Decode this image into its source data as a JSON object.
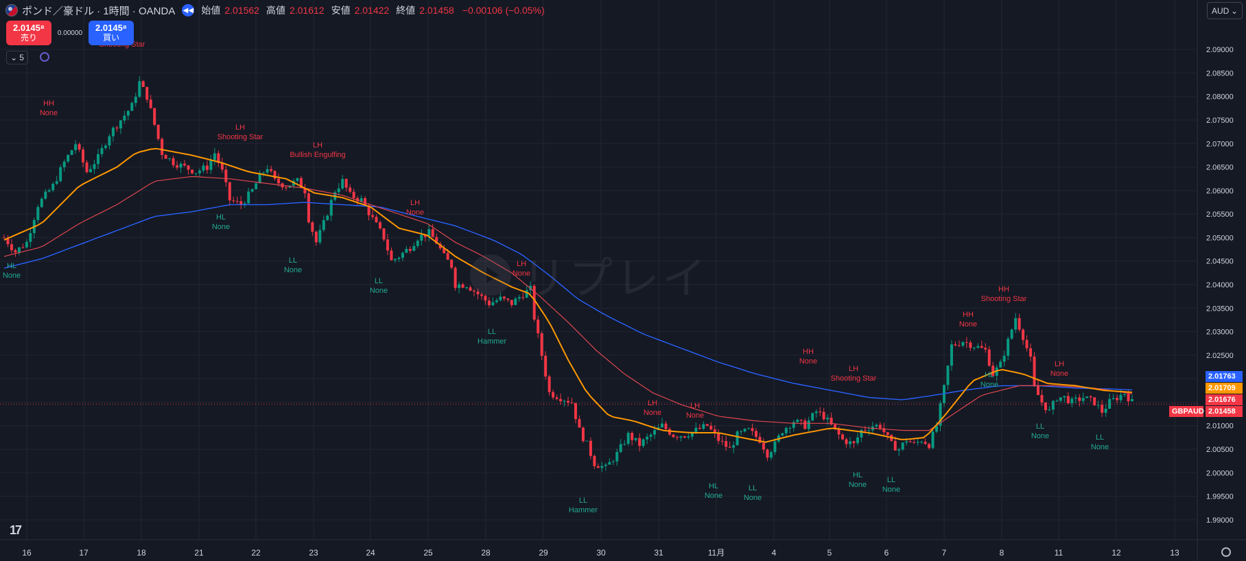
{
  "header": {
    "symbol_title": "ポンド／豪ドル · 1時間 · OANDA",
    "open_label": "始値",
    "open": "2.01562",
    "high_label": "高値",
    "high": "2.01612",
    "low_label": "安値",
    "low": "2.01422",
    "close_label": "終値",
    "close": "2.01458",
    "change": "−0.00106 (−0.05%)"
  },
  "trade": {
    "sell_price": "2.0145⁸",
    "sell_label": "売り",
    "spread": "0.00000",
    "buy_price": "2.0145⁸",
    "buy_label": "買い"
  },
  "collapse_count": "5",
  "currency": "AUD",
  "watermark": "リプレイ",
  "price_axis": [
    "2.09000",
    "2.08500",
    "2.08000",
    "2.07500",
    "2.07000",
    "2.06500",
    "2.06000",
    "2.05500",
    "2.05000",
    "2.04500",
    "2.04000",
    "2.03500",
    "2.03000",
    "2.02500",
    "2.02000",
    "2.01500",
    "2.01000",
    "2.00500",
    "2.00000",
    "1.99500",
    "1.99000"
  ],
  "time_axis": [
    "16",
    "17",
    "18",
    "21",
    "22",
    "23",
    "24",
    "25",
    "28",
    "29",
    "30",
    "31",
    "11月",
    "4",
    "5",
    "6",
    "7",
    "8",
    "11",
    "12",
    "13"
  ],
  "price_tags": {
    "ema_slow": {
      "value": "2.01763",
      "color": "#2962ff"
    },
    "ema_fast": {
      "value": "2.01709",
      "color": "#ff9800"
    },
    "ema_mid": {
      "value": "2.01676",
      "color": "#f23645"
    },
    "last": {
      "value": "2.01458",
      "color": "#f23645"
    },
    "symbol": {
      "value": "GBPAUD",
      "color": "#f23645"
    }
  },
  "annotations": [
    {
      "t1": "HL",
      "t2": "None",
      "c": "teal"
    },
    {
      "t1": "HH",
      "t2": "None",
      "c": "red"
    },
    {
      "t1": "Shooting Star",
      "t2": "",
      "c": "red"
    },
    {
      "t1": "LH",
      "t2": "Shooting Star",
      "c": "red"
    },
    {
      "t1": "HL",
      "t2": "None",
      "c": "teal"
    },
    {
      "t1": "LH",
      "t2": "Bullish Engulfing",
      "c": "red"
    },
    {
      "t1": "LL",
      "t2": "None",
      "c": "teal"
    },
    {
      "t1": "LH",
      "t2": "None",
      "c": "red"
    },
    {
      "t1": "LL",
      "t2": "None",
      "c": "teal"
    },
    {
      "t1": "LH",
      "t2": "None",
      "c": "red"
    },
    {
      "t1": "LL",
      "t2": "Hammer",
      "c": "teal"
    },
    {
      "t1": "LL",
      "t2": "Hammer",
      "c": "teal"
    },
    {
      "t1": "LH",
      "t2": "None",
      "c": "red"
    },
    {
      "t1": "LH",
      "t2": "None",
      "c": "red"
    },
    {
      "t1": "HL",
      "t2": "None",
      "c": "teal"
    },
    {
      "t1": "LL",
      "t2": "None",
      "c": "teal"
    },
    {
      "t1": "HH",
      "t2": "None",
      "c": "red"
    },
    {
      "t1": "LH",
      "t2": "Shooting Star",
      "c": "red"
    },
    {
      "t1": "HL",
      "t2": "None",
      "c": "teal"
    },
    {
      "t1": "LL",
      "t2": "None",
      "c": "teal"
    },
    {
      "t1": "HH",
      "t2": "None",
      "c": "red"
    },
    {
      "t1": "HH",
      "t2": "Shooting Star",
      "c": "red"
    },
    {
      "t1": "HL",
      "t2": "None",
      "c": "teal"
    },
    {
      "t1": "LL",
      "t2": "None",
      "c": "teal"
    },
    {
      "t1": "LH",
      "t2": "None",
      "c": "red"
    },
    {
      "t1": "LL",
      "t2": "None",
      "c": "teal"
    }
  ],
  "colors": {
    "background": "#151924",
    "grid": "#232632",
    "up": "#089981",
    "down": "#f23645",
    "ema_fast": "#ff9800",
    "ema_mid": "#e0474f",
    "ema_slow": "#2962ff",
    "axis_text": "#d1d4dc",
    "label_red": "#f23645",
    "label_teal": "#22ab94"
  },
  "chart_data": {
    "type": "candlestick",
    "ylim": [
      1.9875,
      2.0925
    ],
    "y_ticks": [
      2.09,
      2.085,
      2.08,
      2.075,
      2.07,
      2.065,
      2.06,
      2.055,
      2.05,
      2.045,
      2.04,
      2.035,
      2.03,
      2.025,
      2.02,
      2.015,
      2.01,
      2.005,
      2.0,
      1.995,
      1.99
    ],
    "price_path": [
      [
        0,
        2.05
      ],
      [
        6,
        2.047
      ],
      [
        12,
        2.049
      ],
      [
        18,
        2.057
      ],
      [
        26,
        2.061
      ],
      [
        32,
        2.066
      ],
      [
        38,
        2.07
      ],
      [
        44,
        2.064
      ],
      [
        50,
        2.067
      ],
      [
        56,
        2.072
      ],
      [
        62,
        2.075
      ],
      [
        68,
        2.078
      ],
      [
        72,
        2.083
      ],
      [
        76,
        2.08
      ],
      [
        80,
        2.074
      ],
      [
        84,
        2.068
      ],
      [
        90,
        2.066
      ],
      [
        96,
        2.065
      ],
      [
        102,
        2.064
      ],
      [
        108,
        2.065
      ],
      [
        112,
        2.068
      ],
      [
        116,
        2.064
      ],
      [
        120,
        2.058
      ],
      [
        126,
        2.057
      ],
      [
        132,
        2.06
      ],
      [
        136,
        2.063
      ],
      [
        140,
        2.065
      ],
      [
        144,
        2.062
      ],
      [
        150,
        2.061
      ],
      [
        156,
        2.062
      ],
      [
        160,
        2.06
      ],
      [
        162,
        2.054
      ],
      [
        166,
        2.049
      ],
      [
        170,
        2.053
      ],
      [
        176,
        2.06
      ],
      [
        180,
        2.062
      ],
      [
        184,
        2.059
      ],
      [
        190,
        2.058
      ],
      [
        196,
        2.054
      ],
      [
        202,
        2.05
      ],
      [
        206,
        2.045
      ],
      [
        210,
        2.046
      ],
      [
        216,
        2.048
      ],
      [
        220,
        2.05
      ],
      [
        226,
        2.051
      ],
      [
        230,
        2.049
      ],
      [
        234,
        2.046
      ],
      [
        238,
        2.044
      ],
      [
        240,
        2.04
      ],
      [
        246,
        2.04
      ],
      [
        252,
        2.038
      ],
      [
        258,
        2.036
      ],
      [
        264,
        2.037
      ],
      [
        270,
        2.036
      ],
      [
        276,
        2.038
      ],
      [
        280,
        2.039
      ],
      [
        282,
        2.033
      ],
      [
        286,
        2.025
      ],
      [
        290,
        2.017
      ],
      [
        296,
        2.016
      ],
      [
        302,
        2.015
      ],
      [
        306,
        2.009
      ],
      [
        310,
        2.006
      ],
      [
        314,
        2.002
      ],
      [
        320,
        2.001
      ],
      [
        326,
        2.004
      ],
      [
        332,
        2.008
      ],
      [
        338,
        2.006
      ],
      [
        344,
        2.008
      ],
      [
        350,
        2.01
      ],
      [
        356,
        2.008
      ],
      [
        362,
        2.008
      ],
      [
        368,
        2.009
      ],
      [
        374,
        2.01
      ],
      [
        380,
        2.007
      ],
      [
        386,
        2.005
      ],
      [
        390,
        2.008
      ],
      [
        396,
        2.009
      ],
      [
        402,
        2.007
      ],
      [
        406,
        2.004
      ],
      [
        410,
        2.006
      ],
      [
        414,
        2.009
      ],
      [
        420,
        2.011
      ],
      [
        426,
        2.01
      ],
      [
        432,
        2.013
      ],
      [
        436,
        2.012
      ],
      [
        440,
        2.01
      ],
      [
        446,
        2.007
      ],
      [
        452,
        2.006
      ],
      [
        456,
        2.009
      ],
      [
        462,
        2.01
      ],
      [
        466,
        2.01
      ],
      [
        472,
        2.006
      ],
      [
        476,
        2.005
      ],
      [
        480,
        2.007
      ],
      [
        484,
        2.006
      ],
      [
        488,
        2.007
      ],
      [
        492,
        2.006
      ],
      [
        496,
        2.01
      ],
      [
        500,
        2.018
      ],
      [
        504,
        2.027
      ],
      [
        510,
        2.028
      ],
      [
        516,
        2.027
      ],
      [
        522,
        2.026
      ],
      [
        526,
        2.021
      ],
      [
        530,
        2.023
      ],
      [
        534,
        2.028
      ],
      [
        538,
        2.033
      ],
      [
        542,
        2.029
      ],
      [
        546,
        2.024
      ],
      [
        548,
        2.018
      ],
      [
        552,
        2.015
      ],
      [
        556,
        2.013
      ],
      [
        560,
        2.016
      ],
      [
        564,
        2.016
      ],
      [
        568,
        2.015
      ],
      [
        574,
        2.016
      ],
      [
        580,
        2.015
      ],
      [
        584,
        2.013
      ],
      [
        588,
        2.015
      ],
      [
        592,
        2.016
      ],
      [
        596,
        2.017
      ],
      [
        600,
        2.015
      ]
    ],
    "ema_fast": [
      [
        0,
        2.0495
      ],
      [
        20,
        2.053
      ],
      [
        40,
        2.061
      ],
      [
        60,
        2.065
      ],
      [
        70,
        2.068
      ],
      [
        80,
        2.069
      ],
      [
        100,
        2.0675
      ],
      [
        115,
        2.066
      ],
      [
        130,
        2.064
      ],
      [
        150,
        2.0625
      ],
      [
        165,
        2.0595
      ],
      [
        180,
        2.0585
      ],
      [
        195,
        2.0565
      ],
      [
        210,
        2.052
      ],
      [
        225,
        2.0505
      ],
      [
        240,
        2.046
      ],
      [
        255,
        2.0425
      ],
      [
        270,
        2.0395
      ],
      [
        280,
        2.038
      ],
      [
        290,
        2.032
      ],
      [
        300,
        2.024
      ],
      [
        310,
        2.017
      ],
      [
        322,
        2.012
      ],
      [
        335,
        2.011
      ],
      [
        350,
        2.009
      ],
      [
        365,
        2.0085
      ],
      [
        380,
        2.0085
      ],
      [
        392,
        2.0075
      ],
      [
        405,
        2.0065
      ],
      [
        420,
        2.008
      ],
      [
        440,
        2.0095
      ],
      [
        460,
        2.0085
      ],
      [
        478,
        2.007
      ],
      [
        490,
        2.0075
      ],
      [
        500,
        2.012
      ],
      [
        515,
        2.0195
      ],
      [
        530,
        2.022
      ],
      [
        542,
        2.021
      ],
      [
        555,
        2.019
      ],
      [
        570,
        2.0185
      ],
      [
        585,
        2.0175
      ],
      [
        600,
        2.0171
      ]
    ],
    "ema_mid": [
      [
        0,
        2.046
      ],
      [
        20,
        2.048
      ],
      [
        40,
        2.053
      ],
      [
        60,
        2.057
      ],
      [
        80,
        2.062
      ],
      [
        100,
        2.063
      ],
      [
        120,
        2.0625
      ],
      [
        140,
        2.0615
      ],
      [
        160,
        2.0605
      ],
      [
        180,
        2.059
      ],
      [
        195,
        2.057
      ],
      [
        210,
        2.055
      ],
      [
        225,
        2.053
      ],
      [
        240,
        2.049
      ],
      [
        255,
        2.046
      ],
      [
        270,
        2.0425
      ],
      [
        285,
        2.0375
      ],
      [
        300,
        2.032
      ],
      [
        315,
        2.026
      ],
      [
        330,
        2.021
      ],
      [
        345,
        2.017
      ],
      [
        360,
        2.0145
      ],
      [
        380,
        2.012
      ],
      [
        400,
        2.011
      ],
      [
        420,
        2.0105
      ],
      [
        440,
        2.0105
      ],
      [
        460,
        2.0095
      ],
      [
        478,
        2.009
      ],
      [
        492,
        2.009
      ],
      [
        505,
        2.0125
      ],
      [
        520,
        2.0165
      ],
      [
        540,
        2.0185
      ],
      [
        560,
        2.0185
      ],
      [
        580,
        2.018
      ],
      [
        600,
        2.0168
      ]
    ],
    "ema_slow": [
      [
        0,
        2.0435
      ],
      [
        20,
        2.0455
      ],
      [
        40,
        2.0485
      ],
      [
        60,
        2.0515
      ],
      [
        80,
        2.0545
      ],
      [
        100,
        2.0555
      ],
      [
        120,
        2.057
      ],
      [
        140,
        2.057
      ],
      [
        160,
        2.0575
      ],
      [
        180,
        2.057
      ],
      [
        200,
        2.0565
      ],
      [
        220,
        2.0545
      ],
      [
        240,
        2.0525
      ],
      [
        260,
        2.0495
      ],
      [
        275,
        2.0465
      ],
      [
        290,
        2.042
      ],
      [
        305,
        2.037
      ],
      [
        320,
        2.0335
      ],
      [
        340,
        2.0295
      ],
      [
        360,
        2.0265
      ],
      [
        380,
        2.0235
      ],
      [
        400,
        2.021
      ],
      [
        420,
        2.019
      ],
      [
        440,
        2.0175
      ],
      [
        460,
        2.016
      ],
      [
        478,
        2.0155
      ],
      [
        495,
        2.0165
      ],
      [
        510,
        2.0175
      ],
      [
        530,
        2.0185
      ],
      [
        550,
        2.0185
      ],
      [
        570,
        2.018
      ],
      [
        590,
        2.0178
      ],
      [
        600,
        2.0176
      ]
    ]
  }
}
